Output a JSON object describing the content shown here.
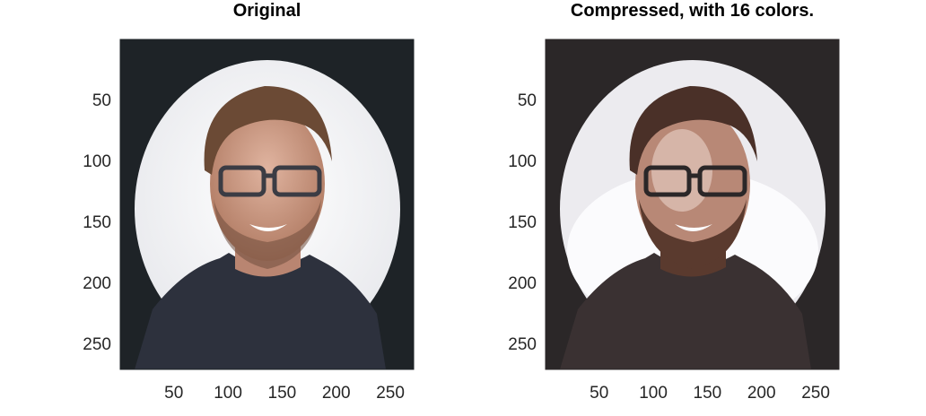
{
  "chart_data": [
    {
      "type": "image",
      "title": "Original",
      "xlim": [
        0.5,
        271.5
      ],
      "ylim": [
        0.5,
        271.5
      ],
      "y_reversed": true,
      "xticks": [
        50,
        100,
        150,
        200,
        250
      ],
      "yticks": [
        50,
        100,
        150,
        200,
        250
      ],
      "xtick_labels": [
        "50",
        "100",
        "150",
        "200",
        "250"
      ],
      "ytick_labels": [
        "50",
        "100",
        "150",
        "200",
        "250"
      ],
      "image_content": "portrait-photo",
      "palette": [
        "#1e2327",
        "#f2f2f4",
        "#6b4a35",
        "#2f3340",
        "#c99a82"
      ]
    },
    {
      "type": "image",
      "title": "Compressed, with 16 colors.",
      "xlim": [
        0.5,
        271.5
      ],
      "ylim": [
        0.5,
        271.5
      ],
      "y_reversed": true,
      "xticks": [
        50,
        100,
        150,
        200,
        250
      ],
      "yticks": [
        50,
        100,
        150,
        200,
        250
      ],
      "xtick_labels": [
        "50",
        "100",
        "150",
        "200",
        "250"
      ],
      "ytick_labels": [
        "50",
        "100",
        "150",
        "200",
        "250"
      ],
      "image_content": "portrait-photo-quantized",
      "color_count": 16,
      "palette": [
        "#2b2728",
        "#ecebef",
        "#fbfbfd",
        "#5a3a2e",
        "#b88876",
        "#d6b5a8",
        "#3a3132"
      ]
    }
  ]
}
